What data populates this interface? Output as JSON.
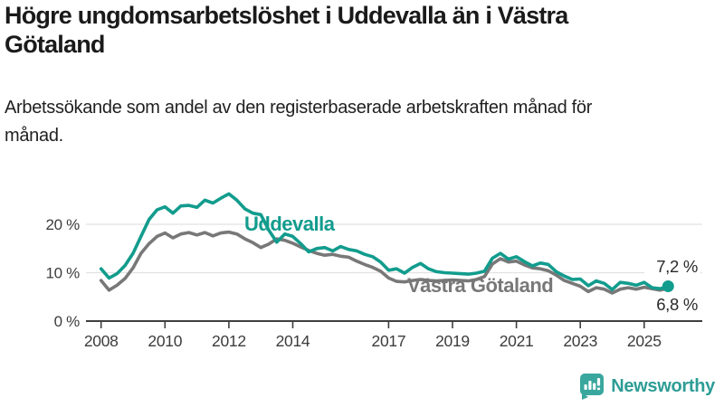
{
  "header": {
    "title": "Högre ungdomsarbetslöshet i Uddevalla än i Västra Götaland",
    "subtitle": "Arbetssökande som andel av den registerbaserade arbetskraften månad för månad."
  },
  "footer": {
    "brand": "Newsworthy"
  },
  "colors": {
    "uddevalla_teal": "#129c8d",
    "vastra_gray": "#787878",
    "gridline": "#e2e2e2",
    "axis": "#3f3f3f",
    "axis_text": "#3c3c3c",
    "end_label_text": "#2a2a2a",
    "logo_teal": "#3aa79e",
    "logo_text_teal": "#2d9d95"
  },
  "chart_data": {
    "type": "line",
    "title": "Högre ungdomsarbetslöshet i Uddevalla än i Västra Götaland",
    "subtitle": "Arbetssökande som andel av den registerbaserade arbetskraften månad för månad.",
    "unit": "%",
    "grid": "horizontal-only",
    "legend_position": "inline-labels",
    "x_range_years": [
      2008,
      2025.75
    ],
    "points_per_year": 4,
    "x_start_year": 2008,
    "x_ticks": [
      2008,
      2010,
      2012,
      2014,
      2017,
      2019,
      2021,
      2023,
      2025
    ],
    "x_tick_labels": [
      "2008",
      "2010",
      "2012",
      "2014",
      "2017",
      "2019",
      "2021",
      "2023",
      "2025"
    ],
    "y_ticks": [
      0,
      10,
      20
    ],
    "y_tick_labels": [
      "0 %",
      "10 %",
      "20 %"
    ],
    "ylim": [
      0,
      28
    ],
    "series": [
      {
        "name": "Uddevalla",
        "color": "#129c8d",
        "end_label": "7,2 %",
        "last_value": 7.2,
        "values": [
          10.8,
          8.9,
          9.8,
          11.5,
          14.0,
          17.5,
          21.0,
          23.0,
          23.6,
          22.3,
          23.8,
          23.9,
          23.5,
          25.0,
          24.4,
          25.4,
          26.3,
          25.0,
          23.2,
          22.3,
          22.0,
          18.8,
          16.3,
          18.0,
          17.5,
          16.0,
          14.3,
          15.0,
          15.2,
          14.5,
          15.4,
          14.8,
          14.5,
          13.8,
          13.3,
          12.2,
          10.5,
          10.8,
          9.9,
          11.1,
          11.9,
          10.8,
          10.2,
          10.0,
          9.9,
          9.8,
          9.7,
          9.9,
          10.3,
          13.0,
          14.0,
          12.8,
          13.3,
          12.3,
          11.4,
          12.0,
          11.7,
          10.2,
          9.3,
          8.6,
          8.7,
          7.3,
          8.3,
          7.8,
          6.5,
          8.0,
          7.8,
          7.4,
          8.0,
          6.9,
          6.7,
          7.2
        ]
      },
      {
        "name": "Västra Götaland",
        "color": "#787878",
        "end_label": "6,8 %",
        "last_value": 6.8,
        "values": [
          8.4,
          6.4,
          7.4,
          8.8,
          11.0,
          14.0,
          16.0,
          17.5,
          18.2,
          17.2,
          18.0,
          18.3,
          17.8,
          18.3,
          17.6,
          18.2,
          18.4,
          18.0,
          17.0,
          16.2,
          15.2,
          15.9,
          17.0,
          16.7,
          16.1,
          15.3,
          14.6,
          14.0,
          13.6,
          13.8,
          13.4,
          13.2,
          12.4,
          11.7,
          11.1,
          10.3,
          8.9,
          8.2,
          8.1,
          8.4,
          8.6,
          8.4,
          8.3,
          8.4,
          8.5,
          8.4,
          8.3,
          8.6,
          9.2,
          11.8,
          12.9,
          12.2,
          12.4,
          11.6,
          11.0,
          10.8,
          10.4,
          9.5,
          8.4,
          7.8,
          7.2,
          6.1,
          6.9,
          6.6,
          5.8,
          6.6,
          6.9,
          6.6,
          7.0,
          6.7,
          6.4,
          6.8
        ]
      }
    ]
  }
}
